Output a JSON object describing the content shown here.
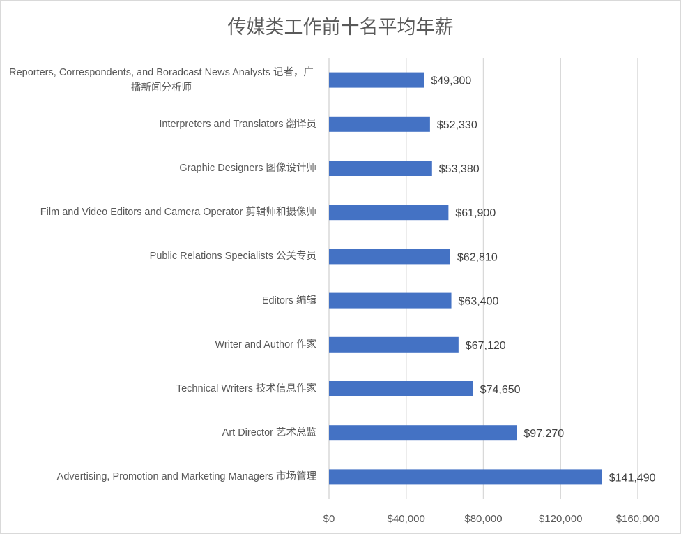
{
  "chart_data": {
    "type": "bar",
    "orientation": "horizontal",
    "title": "传媒类工作前十名平均年薪",
    "categories": [
      "Reporters, Correspondents, and Boradcast News Analysts 记者，广播新闻分析师",
      "Interpreters and Translators 翻译员",
      "Graphic Designers 图像设计师",
      "Film and Video Editors and Camera Operator 剪辑师和摄像师",
      "Public Relations Specialists 公关专员",
      "Editors 编辑",
      "Writer and Author 作家",
      "Technical Writers 技术信息作家",
      "Art Director 艺术总监",
      "Advertising, Promotion and Marketing Managers 市场管理"
    ],
    "values": [
      49300,
      52330,
      53380,
      61900,
      62810,
      63400,
      67120,
      74650,
      97270,
      141490
    ],
    "data_labels": [
      "$49,300",
      "$52,330",
      "$53,380",
      "$61,900",
      "$62,810",
      "$63,400",
      "$67,120",
      "$74,650",
      "$97,270",
      "$141,490"
    ],
    "xlim": [
      0,
      160000
    ],
    "x_ticks": [
      0,
      40000,
      80000,
      120000,
      160000
    ],
    "x_tick_labels": [
      "$0",
      "$40,000",
      "$80,000",
      "$120,000",
      "$160,000"
    ],
    "xlabel": "",
    "ylabel": "",
    "grid": "vertical",
    "legend": "none",
    "bar_color": "#4472C4",
    "grid_color": "#d9d9d9"
  }
}
